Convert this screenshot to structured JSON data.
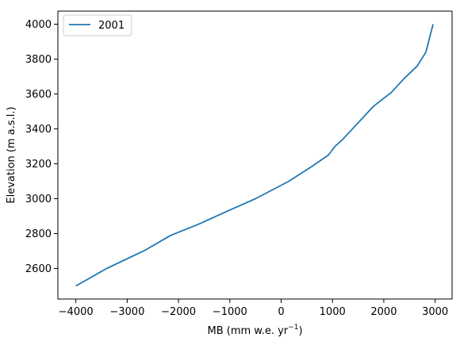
{
  "chart_data": {
    "type": "line",
    "title": "",
    "xlabel": "MB (mm w.e. yr",
    "xlabel_sup": "−1",
    "xlabel_end": ")",
    "ylabel": "Elevation (m a.s.l.)",
    "xlim": [
      -4350,
      3330
    ],
    "ylim": [
      2425,
      4075
    ],
    "xticks": [
      -4000,
      -3000,
      -2000,
      -1000,
      0,
      1000,
      2000,
      3000
    ],
    "xtick_labels": [
      "−4000",
      "−3000",
      "−2000",
      "−1000",
      "0",
      "1000",
      "2000",
      "3000"
    ],
    "yticks": [
      2600,
      2800,
      3000,
      3200,
      3400,
      3600,
      3800,
      4000
    ],
    "ytick_labels": [
      "2600",
      "2800",
      "3000",
      "3200",
      "3400",
      "3600",
      "3800",
      "4000"
    ],
    "grid": false,
    "legend": "top-left",
    "series": [
      {
        "name": "2001",
        "color": "#1f77b4",
        "points": [
          [
            -4000,
            2500
          ],
          [
            -3400,
            2600
          ],
          [
            -2650,
            2705
          ],
          [
            -2150,
            2790
          ],
          [
            -1600,
            2855
          ],
          [
            -1000,
            2935
          ],
          [
            -500,
            3000
          ],
          [
            150,
            3100
          ],
          [
            600,
            3185
          ],
          [
            920,
            3250
          ],
          [
            1050,
            3300
          ],
          [
            1200,
            3340
          ],
          [
            1500,
            3435
          ],
          [
            1800,
            3530
          ],
          [
            2150,
            3610
          ],
          [
            2400,
            3690
          ],
          [
            2650,
            3760
          ],
          [
            2820,
            3840
          ],
          [
            2960,
            4000
          ]
        ]
      }
    ]
  }
}
